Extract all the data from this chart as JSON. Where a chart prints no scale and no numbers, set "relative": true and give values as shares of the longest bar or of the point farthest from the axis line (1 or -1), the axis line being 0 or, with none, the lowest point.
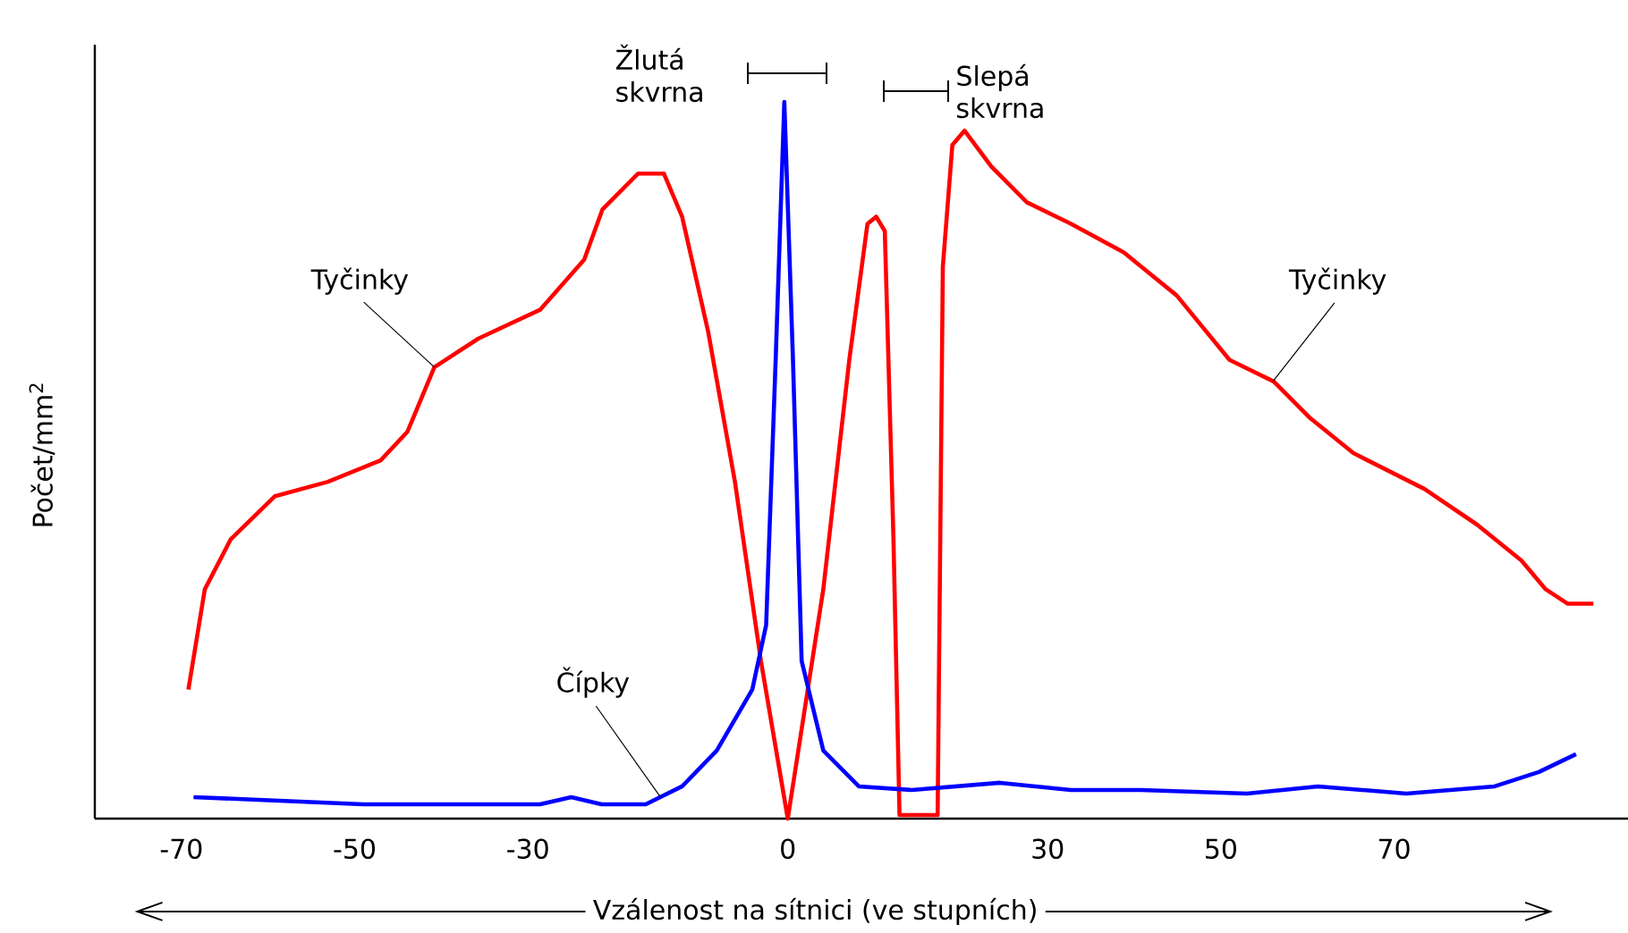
{
  "chart_data": {
    "type": "line",
    "relative": true,
    "xlabel": "Vzálenost na sítnici (ve stupních)",
    "ylabel": "Počet/mm$^{2}$",
    "xlim": [
      -80,
      97
    ],
    "xticks": [
      -70,
      -50,
      -30,
      0,
      30,
      50,
      70
    ],
    "marker": "none",
    "line_style": "solid",
    "series": [
      {
        "color": "#ff0000",
        "x": [
          -69.2,
          -67.3,
          -64.3,
          -59.2,
          -53.1,
          -47,
          -43.9,
          -40.8,
          -35.7,
          -28.6,
          -23.5,
          -21.4,
          -17.3,
          -14.3,
          -12.2,
          -9.2,
          -6.1,
          -3.1,
          0,
          4.1,
          7.1,
          9.2,
          10.2,
          11.2,
          12.2,
          12.9,
          17.3,
          17.9,
          19,
          20.4,
          23.5,
          27.6,
          32.7,
          38.8,
          44.9,
          51,
          56.1,
          60.2,
          65.3,
          73.5,
          79.6,
          84.7,
          87.5,
          90,
          93
        ],
        "values": [
          0.18,
          0.32,
          0.39,
          0.45,
          0.47,
          0.5,
          0.54,
          0.63,
          0.67,
          0.71,
          0.78,
          0.85,
          0.9,
          0.9,
          0.84,
          0.68,
          0.47,
          0.22,
          0,
          0.32,
          0.64,
          0.83,
          0.84,
          0.82,
          0.39,
          0.005,
          0.005,
          0.77,
          0.94,
          0.96,
          0.91,
          0.86,
          0.83,
          0.79,
          0.73,
          0.64,
          0.61,
          0.56,
          0.51,
          0.46,
          0.41,
          0.36,
          0.32,
          0.3,
          0.3
        ]
      },
      {
        "color": "#0000ff",
        "x": [
          -68.6,
          -49,
          -28.6,
          -25,
          -21.5,
          -16.4,
          -12.2,
          -8.2,
          -4.1,
          -2.5,
          -1.4,
          -0.4,
          0.6,
          1.6,
          4.1,
          8.2,
          14.3,
          24.5,
          32.7,
          40.8,
          53,
          61.2,
          71.4,
          81.6,
          86.7,
          91
        ],
        "values": [
          0.03,
          0.02,
          0.02,
          0.03,
          0.02,
          0.02,
          0.045,
          0.095,
          0.18,
          0.27,
          0.64,
          1.0,
          0.64,
          0.22,
          0.095,
          0.045,
          0.04,
          0.05,
          0.04,
          0.04,
          0.035,
          0.045,
          0.035,
          0.045,
          0.065,
          0.09
        ]
      }
    ],
    "annotations": [
      "Žlutá skvrna",
      "Slepá skvrna",
      {
        "text": "Tyčinky",
        "x": -40.8,
        "y": 0.63
      },
      {
        "text": "Tyčinky",
        "x": 56,
        "y": 0.61
      },
      {
        "text": "Čípky",
        "x": -14.7,
        "y": 0.03
      }
    ]
  }
}
